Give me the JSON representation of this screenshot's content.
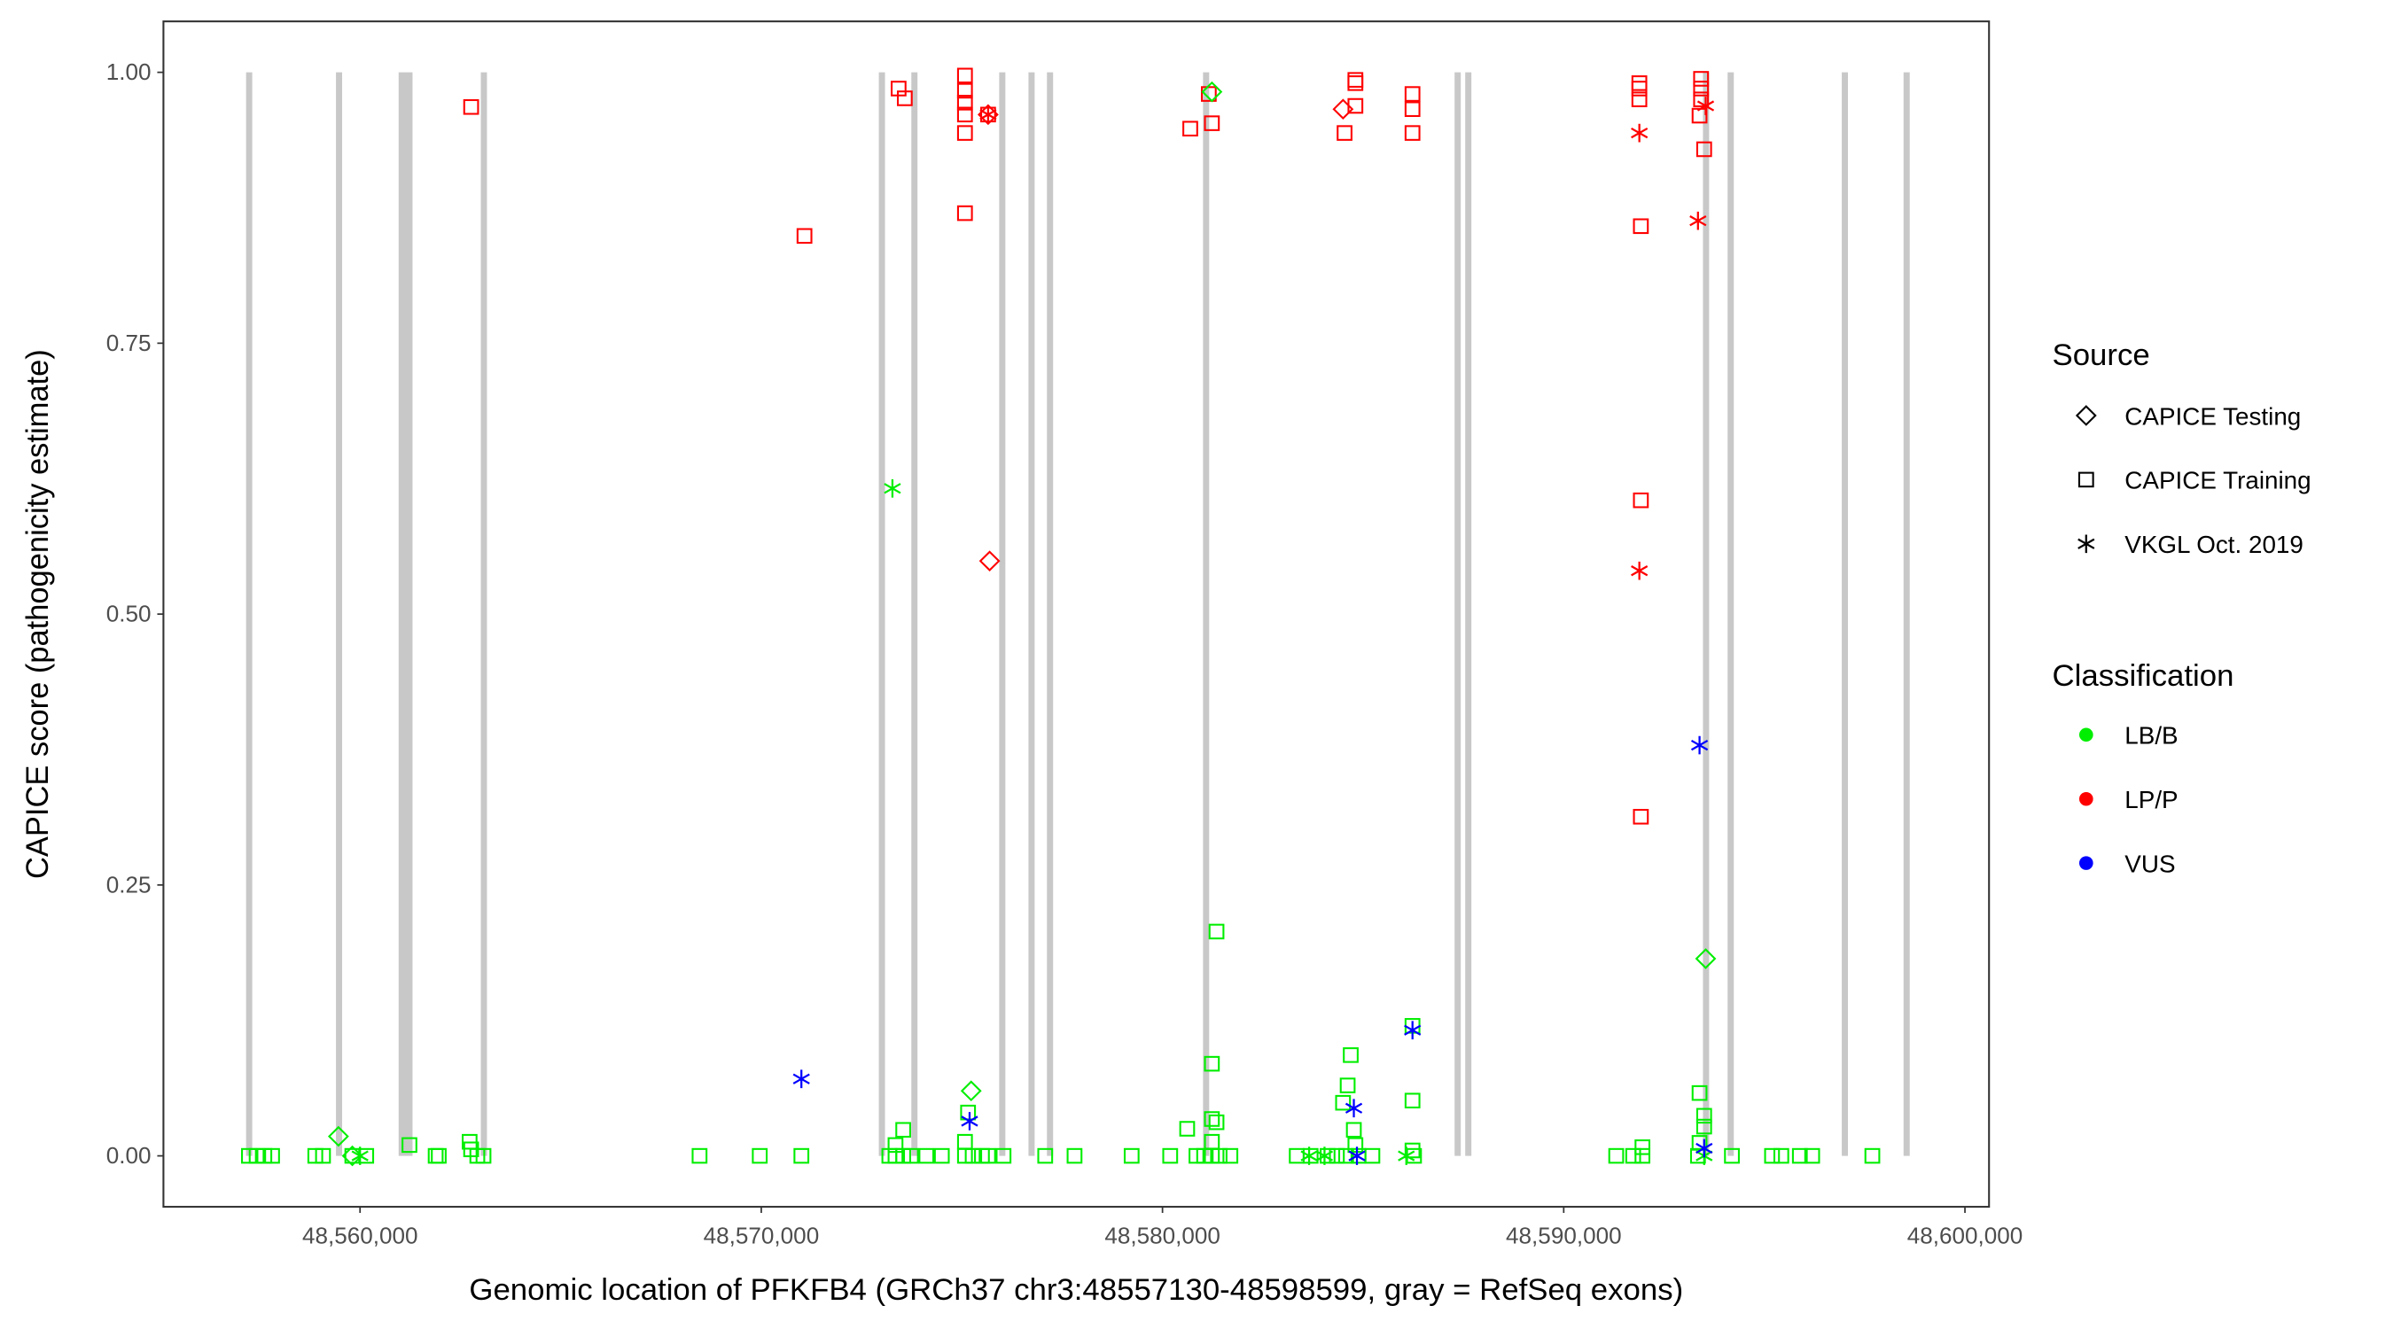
{
  "chart_data": {
    "type": "scatter",
    "xlabel": "Genomic location of PFKFB4 (GRCh37 chr3:48557130-48598599, gray = RefSeq exons)",
    "ylabel": "CAPICE score (pathogenicity estimate)",
    "xlim": [
      48555100,
      48600600
    ],
    "ylim": [
      -0.047,
      1.047
    ],
    "xticks": [
      48560000,
      48570000,
      48580000,
      48590000,
      48600000
    ],
    "xtick_labels": [
      "48,560,000",
      "48,570,000",
      "48,580,000",
      "48,590,000",
      "48,600,000"
    ],
    "yticks": [
      0,
      0.25,
      0.5,
      0.75,
      1.0
    ],
    "ytick_labels": [
      "0.00",
      "0.25",
      "0.50",
      "0.75",
      "1.00"
    ],
    "grid": false,
    "exons": [
      [
        48557160,
        48557300
      ],
      [
        48559400,
        48559530
      ],
      [
        48560962,
        48561308
      ],
      [
        48563010,
        48563150
      ],
      [
        48572930,
        48573070
      ],
      [
        48573740,
        48573880
      ],
      [
        48575930,
        48576070
      ],
      [
        48576660,
        48576800
      ],
      [
        48577120,
        48577260
      ],
      [
        48581010,
        48581150
      ],
      [
        48587280,
        48587420
      ],
      [
        48587545,
        48587685
      ],
      [
        48593470,
        48593610
      ],
      [
        48594085,
        48594225
      ],
      [
        48596930,
        48597070
      ],
      [
        48598470,
        48598610
      ]
    ],
    "legend": {
      "placement": "right",
      "source_title": "Source",
      "source": [
        {
          "label": "CAPICE Testing",
          "shape": "diamond"
        },
        {
          "label": "CAPICE Training",
          "shape": "square"
        },
        {
          "label": "VKGL Oct. 2019",
          "shape": "star"
        }
      ],
      "class_title": "Classification",
      "classes": [
        {
          "label": "LB/B",
          "color": "#00EE00"
        },
        {
          "label": "LP/P",
          "color": "#FF0000"
        },
        {
          "label": "VUS",
          "color": "#0000FF"
        }
      ]
    },
    "points": [
      [
        48562769,
        0.968,
        "square",
        "LP/P"
      ],
      [
        48571077,
        0.849,
        "square",
        "LP/P"
      ],
      [
        48573423,
        0.985,
        "square",
        "LP/P"
      ],
      [
        48573577,
        0.976,
        "square",
        "LP/P"
      ],
      [
        48575077,
        0.997,
        "square",
        "LP/P"
      ],
      [
        48575077,
        0.983,
        "square",
        "LP/P"
      ],
      [
        48575077,
        0.972,
        "square",
        "LP/P"
      ],
      [
        48575077,
        0.961,
        "square",
        "LP/P"
      ],
      [
        48575077,
        0.944,
        "square",
        "LP/P"
      ],
      [
        48575077,
        0.87,
        "square",
        "LP/P"
      ],
      [
        48575654,
        0.961,
        "square",
        "LP/P"
      ],
      [
        48575654,
        0.961,
        "diamond",
        "LP/P"
      ],
      [
        48575654,
        0.961,
        "star",
        "LP/P"
      ],
      [
        48575692,
        0.549,
        "diamond",
        "LP/P"
      ],
      [
        48580692,
        0.948,
        "square",
        "LP/P"
      ],
      [
        48581231,
        0.953,
        "square",
        "LP/P"
      ],
      [
        48581154,
        0.98,
        "square",
        "LP/P"
      ],
      [
        48584500,
        0.966,
        "diamond",
        "LP/P"
      ],
      [
        48584538,
        0.944,
        "square",
        "LP/P"
      ],
      [
        48584808,
        0.993,
        "square",
        "LP/P"
      ],
      [
        48584808,
        0.99,
        "square",
        "LP/P"
      ],
      [
        48584808,
        0.969,
        "square",
        "LP/P"
      ],
      [
        48586231,
        0.98,
        "square",
        "LP/P"
      ],
      [
        48586231,
        0.966,
        "square",
        "LP/P"
      ],
      [
        48586231,
        0.944,
        "square",
        "LP/P"
      ],
      [
        48591885,
        0.99,
        "square",
        "LP/P"
      ],
      [
        48591885,
        0.985,
        "square",
        "LP/P"
      ],
      [
        48591885,
        0.975,
        "square",
        "LP/P"
      ],
      [
        48591923,
        0.858,
        "square",
        "LP/P"
      ],
      [
        48591923,
        0.605,
        "square",
        "LP/P"
      ],
      [
        48591923,
        0.313,
        "square",
        "LP/P"
      ],
      [
        48591885,
        0.944,
        "star",
        "LP/P"
      ],
      [
        48591885,
        0.54,
        "star",
        "LP/P"
      ],
      [
        48593423,
        0.994,
        "square",
        "LP/P"
      ],
      [
        48593423,
        0.985,
        "square",
        "LP/P"
      ],
      [
        48593423,
        0.975,
        "square",
        "LP/P"
      ],
      [
        48593385,
        0.96,
        "square",
        "LP/P"
      ],
      [
        48593500,
        0.929,
        "square",
        "LP/P"
      ],
      [
        48593346,
        0.863,
        "star",
        "LP/P"
      ],
      [
        48593538,
        0.969,
        "star",
        "LP/P"
      ],
      [
        48581231,
        0.982,
        "diamond",
        "LB/B"
      ],
      [
        48573269,
        0.616,
        "star",
        "LB/B"
      ],
      [
        48581346,
        0.207,
        "square",
        "LB/B"
      ],
      [
        48581231,
        0.085,
        "square",
        "LB/B"
      ],
      [
        48581231,
        0.034,
        "square",
        "LB/B"
      ],
      [
        48581346,
        0.031,
        "square",
        "LB/B"
      ],
      [
        48580615,
        0.025,
        "square",
        "LB/B"
      ],
      [
        48581231,
        0.013,
        "square",
        "LB/B"
      ],
      [
        48575231,
        0.06,
        "diamond",
        "LB/B"
      ],
      [
        48575154,
        0.04,
        "square",
        "LB/B"
      ],
      [
        48573538,
        0.024,
        "square",
        "LB/B"
      ],
      [
        48575077,
        0.013,
        "square",
        "LB/B"
      ],
      [
        48573346,
        0.01,
        "square",
        "LB/B"
      ],
      [
        48584692,
        0.093,
        "square",
        "LB/B"
      ],
      [
        48584615,
        0.065,
        "square",
        "LB/B"
      ],
      [
        48584500,
        0.049,
        "square",
        "LB/B"
      ],
      [
        48584769,
        0.024,
        "square",
        "LB/B"
      ],
      [
        48584808,
        0.01,
        "square",
        "LB/B"
      ],
      [
        48586231,
        0.051,
        "square",
        "LB/B"
      ],
      [
        48586231,
        0.12,
        "square",
        "LB/B"
      ],
      [
        48586231,
        0.005,
        "square",
        "LB/B"
      ],
      [
        48593538,
        0.182,
        "diamond",
        "LB/B"
      ],
      [
        48593385,
        0.058,
        "square",
        "LB/B"
      ],
      [
        48593500,
        0.037,
        "square",
        "LB/B"
      ],
      [
        48593500,
        0.027,
        "square",
        "LB/B"
      ],
      [
        48593385,
        0.012,
        "square",
        "LB/B"
      ],
      [
        48591962,
        0.008,
        "square",
        "LB/B"
      ],
      [
        48562731,
        0.013,
        "square",
        "LB/B"
      ],
      [
        48562769,
        0.006,
        "square",
        "LB/B"
      ],
      [
        48561231,
        0.01,
        "square",
        "LB/B"
      ],
      [
        48559462,
        0.018,
        "diamond",
        "LB/B"
      ],
      [
        48557231,
        0,
        "square",
        "LB/B"
      ],
      [
        48557423,
        0,
        "square",
        "LB/B"
      ],
      [
        48557615,
        0,
        "square",
        "LB/B"
      ],
      [
        48557808,
        0,
        "square",
        "LB/B"
      ],
      [
        48558885,
        0,
        "square",
        "LB/B"
      ],
      [
        48559077,
        0,
        "square",
        "LB/B"
      ],
      [
        48559808,
        0,
        "square",
        "LB/B"
      ],
      [
        48559808,
        0,
        "diamond",
        "LB/B"
      ],
      [
        48560000,
        0,
        "star",
        "LB/B"
      ],
      [
        48560154,
        0,
        "square",
        "LB/B"
      ],
      [
        48561885,
        0,
        "square",
        "LB/B"
      ],
      [
        48561962,
        0,
        "square",
        "LB/B"
      ],
      [
        48562923,
        0,
        "square",
        "LB/B"
      ],
      [
        48563077,
        0,
        "square",
        "LB/B"
      ],
      [
        48568462,
        0,
        "square",
        "LB/B"
      ],
      [
        48569962,
        0,
        "square",
        "LB/B"
      ],
      [
        48571000,
        0,
        "square",
        "LB/B"
      ],
      [
        48573192,
        0,
        "square",
        "LB/B"
      ],
      [
        48573346,
        0,
        "square",
        "LB/B"
      ],
      [
        48573538,
        0,
        "square",
        "LB/B"
      ],
      [
        48573731,
        0,
        "square",
        "LB/B"
      ],
      [
        48574115,
        0,
        "square",
        "LB/B"
      ],
      [
        48574500,
        0,
        "square",
        "LB/B"
      ],
      [
        48575077,
        0,
        "square",
        "LB/B"
      ],
      [
        48575269,
        0,
        "square",
        "LB/B"
      ],
      [
        48575500,
        0,
        "square",
        "LB/B"
      ],
      [
        48575654,
        0,
        "square",
        "LB/B"
      ],
      [
        48576038,
        0,
        "square",
        "LB/B"
      ],
      [
        48577077,
        0,
        "square",
        "LB/B"
      ],
      [
        48577808,
        0,
        "square",
        "LB/B"
      ],
      [
        48579231,
        0,
        "square",
        "LB/B"
      ],
      [
        48580192,
        0,
        "square",
        "LB/B"
      ],
      [
        48580846,
        0,
        "square",
        "LB/B"
      ],
      [
        48581038,
        0,
        "square",
        "LB/B"
      ],
      [
        48581231,
        0,
        "square",
        "LB/B"
      ],
      [
        48581423,
        0,
        "square",
        "LB/B"
      ],
      [
        48581692,
        0,
        "square",
        "LB/B"
      ],
      [
        48583346,
        0,
        "square",
        "LB/B"
      ],
      [
        48583654,
        0,
        "star",
        "LB/B"
      ],
      [
        48583692,
        0,
        "square",
        "LB/B"
      ],
      [
        48584038,
        0,
        "star",
        "LB/B"
      ],
      [
        48584115,
        0,
        "square",
        "LB/B"
      ],
      [
        48584346,
        0,
        "square",
        "LB/B"
      ],
      [
        48584577,
        0,
        "square",
        "LB/B"
      ],
      [
        48584885,
        0,
        "square",
        "LB/B"
      ],
      [
        48585231,
        0,
        "square",
        "LB/B"
      ],
      [
        48586077,
        0,
        "star",
        "LB/B"
      ],
      [
        48586269,
        0,
        "square",
        "LB/B"
      ],
      [
        48591308,
        0,
        "square",
        "LB/B"
      ],
      [
        48591731,
        0,
        "square",
        "LB/B"
      ],
      [
        48591962,
        0,
        "square",
        "LB/B"
      ],
      [
        48593346,
        0,
        "square",
        "LB/B"
      ],
      [
        48593500,
        0,
        "star",
        "LB/B"
      ],
      [
        48594192,
        0,
        "square",
        "LB/B"
      ],
      [
        48595192,
        0,
        "square",
        "LB/B"
      ],
      [
        48595423,
        0,
        "square",
        "LB/B"
      ],
      [
        48595885,
        0,
        "square",
        "LB/B"
      ],
      [
        48596192,
        0,
        "square",
        "LB/B"
      ],
      [
        48597692,
        0,
        "square",
        "LB/B"
      ],
      [
        48571000,
        0.071,
        "star",
        "VUS"
      ],
      [
        48575192,
        0.032,
        "star",
        "VUS"
      ],
      [
        48584769,
        0.044,
        "star",
        "VUS"
      ],
      [
        48584846,
        0,
        "star",
        "VUS"
      ],
      [
        48586231,
        0.116,
        "star",
        "VUS"
      ],
      [
        48593385,
        0.379,
        "star",
        "VUS"
      ],
      [
        48593500,
        0.007,
        "star",
        "VUS"
      ]
    ]
  }
}
